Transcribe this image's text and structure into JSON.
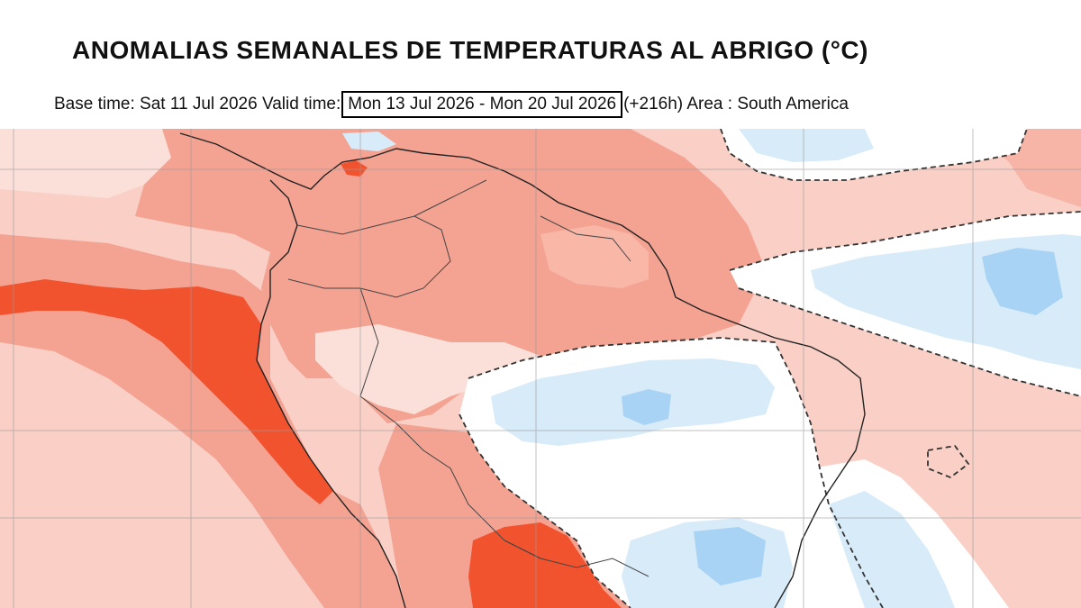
{
  "title": "ANOMALIAS SEMANALES DE TEMPERATURAS AL ABRIGO (°C)",
  "subtitle": {
    "base_time_label": "Base time: Sat 11 Jul 2026 Valid time:",
    "valid_range": "Mon 13 Jul 2026 - Mon 20 Jul 2026",
    "lead_and_area": "(+216h) Area : South America"
  },
  "map": {
    "region": "South America",
    "field": "weekly 2m temperature anomaly",
    "colors": {
      "strong_warm": "#f2532f",
      "warm": "#f4a392",
      "light_warm": "#f9cfc6",
      "very_light_warm": "#fbdfd9",
      "neutral": "#ffffff",
      "light_cool": "#d8ebf8",
      "cool": "#a9d3f4"
    }
  }
}
